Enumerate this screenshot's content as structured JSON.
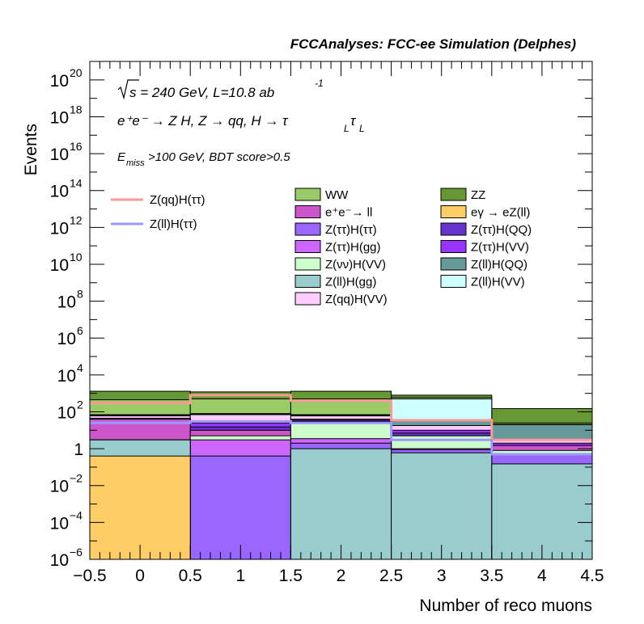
{
  "chart_data": {
    "type": "bar",
    "stacked": true,
    "title": "FCCAnalyses: FCC-ee Simulation (Delphes)",
    "xlabel": "Number of reco muons",
    "ylabel": "Events",
    "xlim": [
      -0.5,
      4.5
    ],
    "ylim_log10": [
      -6,
      21
    ],
    "log_y": true,
    "grid": false,
    "bin_edges": [
      -0.5,
      0.5,
      1.5,
      2.5,
      3.5,
      4.5
    ],
    "x_ticks": [
      "−0.5",
      "0",
      "0.5",
      "1",
      "1.5",
      "2",
      "2.5",
      "3",
      "3.5",
      "4",
      "4.5"
    ],
    "y_ticks": [
      {
        "exp": -6,
        "label": "10",
        "sup": "−6"
      },
      {
        "exp": -4,
        "label": "10",
        "sup": "−4"
      },
      {
        "exp": -2,
        "label": "10",
        "sup": "−2"
      },
      {
        "exp": 0,
        "label": "1",
        "sup": ""
      },
      {
        "exp": 2,
        "label": "10",
        "sup": "2"
      },
      {
        "exp": 4,
        "label": "10",
        "sup": "4"
      },
      {
        "exp": 6,
        "label": "10",
        "sup": "6"
      },
      {
        "exp": 8,
        "label": "10",
        "sup": "8"
      },
      {
        "exp": 10,
        "label": "10",
        "sup": "10"
      },
      {
        "exp": 12,
        "label": "10",
        "sup": "12"
      },
      {
        "exp": 14,
        "label": "10",
        "sup": "14"
      },
      {
        "exp": 16,
        "label": "10",
        "sup": "16"
      },
      {
        "exp": 18,
        "label": "10",
        "sup": "18"
      },
      {
        "exp": 20,
        "label": "10",
        "sup": "20"
      }
    ],
    "annotations": {
      "sqrt_s": "s = 240 GeV, L=10.8 ab",
      "sqrt_s_sup": "-1",
      "process_line": "e⁺e⁻ → Z H, Z → qq, H → τ",
      "process_sub1": "L",
      "process_tau2": "τ",
      "process_sub2": "L",
      "cut_line_prefix": "E",
      "cut_line_sub": "miss",
      "cut_line_rest": ">100 GeV, BDT score>0.5"
    },
    "stack_cumulative_top": [
      {
        "name": "eγ → eZ(ll)",
        "color": "#fecd66",
        "values": [
          0.4,
          0,
          0,
          0,
          0
        ]
      },
      {
        "name": "Z(ll)H(gg)",
        "color": "#99cccc",
        "values": [
          3,
          1e-06,
          1,
          0.6,
          0.15
        ]
      },
      {
        "name": "Z(ττ)H(ττ)",
        "color": "#9966ff",
        "values": [
          3,
          0.4,
          2,
          0.9,
          0.5
        ]
      },
      {
        "name": "Z(ττ)H(gg)",
        "color": "#cc66ff",
        "values": [
          3,
          3,
          3.5,
          1,
          0.5
        ]
      },
      {
        "name": "Z(νν)H(VV)",
        "color": "#ccffcc",
        "values": [
          3,
          5,
          25,
          5,
          0.8
        ]
      },
      {
        "name": "e⁺e⁻→ ll",
        "color": "#cc55cc",
        "values": [
          40,
          10,
          30,
          5,
          1.5
        ]
      },
      {
        "name": "Z(ττ)H(QQ)",
        "color": "#6633cc",
        "values": [
          40,
          15,
          35,
          7,
          1.5
        ]
      },
      {
        "name": "Z(ττ)H(VV)",
        "color": "#9933ff",
        "values": [
          45,
          25,
          40,
          10,
          2
        ]
      },
      {
        "name": "Z(qq)H(VV)",
        "color": "#ffccff",
        "values": [
          60,
          70,
          60,
          18,
          3
        ]
      },
      {
        "name": "Z(ll)H(QQ)",
        "color": "#669999",
        "values": [
          65,
          75,
          65,
          35,
          20
        ]
      },
      {
        "name": "Z(ll)H(VV)",
        "color": "#ccffff",
        "values": [
          70,
          80,
          70,
          500,
          21
        ]
      },
      {
        "name": "WW",
        "color": "#99cc66",
        "values": [
          450,
          500,
          500,
          600,
          25
        ]
      },
      {
        "name": "ZZ",
        "color": "#669933",
        "values": [
          1300,
          1200,
          1300,
          800,
          150
        ]
      }
    ],
    "lines": [
      {
        "name": "Z(qq)H(ττ)",
        "color": "#ff9999",
        "values": [
          300,
          800,
          400,
          35,
          3
        ]
      },
      {
        "name": "Z(ll)H(ττ)",
        "color": "#9999ff",
        "values": [
          25,
          30,
          25,
          3,
          0.5
        ]
      }
    ],
    "legend_placement": "upper middle",
    "legend_line_entries": [
      "Z(qq)H(ττ)",
      "Z(ll)H(ττ)"
    ],
    "legend_fill_entries": [
      [
        "WW",
        "ZZ"
      ],
      [
        "e⁺e⁻→ ll",
        "eγ → eZ(ll)"
      ],
      [
        "Z(ττ)H(ττ)",
        "Z(ττ)H(QQ)"
      ],
      [
        "Z(ττ)H(gg)",
        "Z(ττ)H(VV)"
      ],
      [
        "Z(νν)H(VV)",
        "Z(ll)H(QQ)"
      ],
      [
        "Z(ll)H(gg)",
        "Z(ll)H(VV)"
      ],
      [
        "Z(qq)H(VV)",
        ""
      ]
    ]
  }
}
